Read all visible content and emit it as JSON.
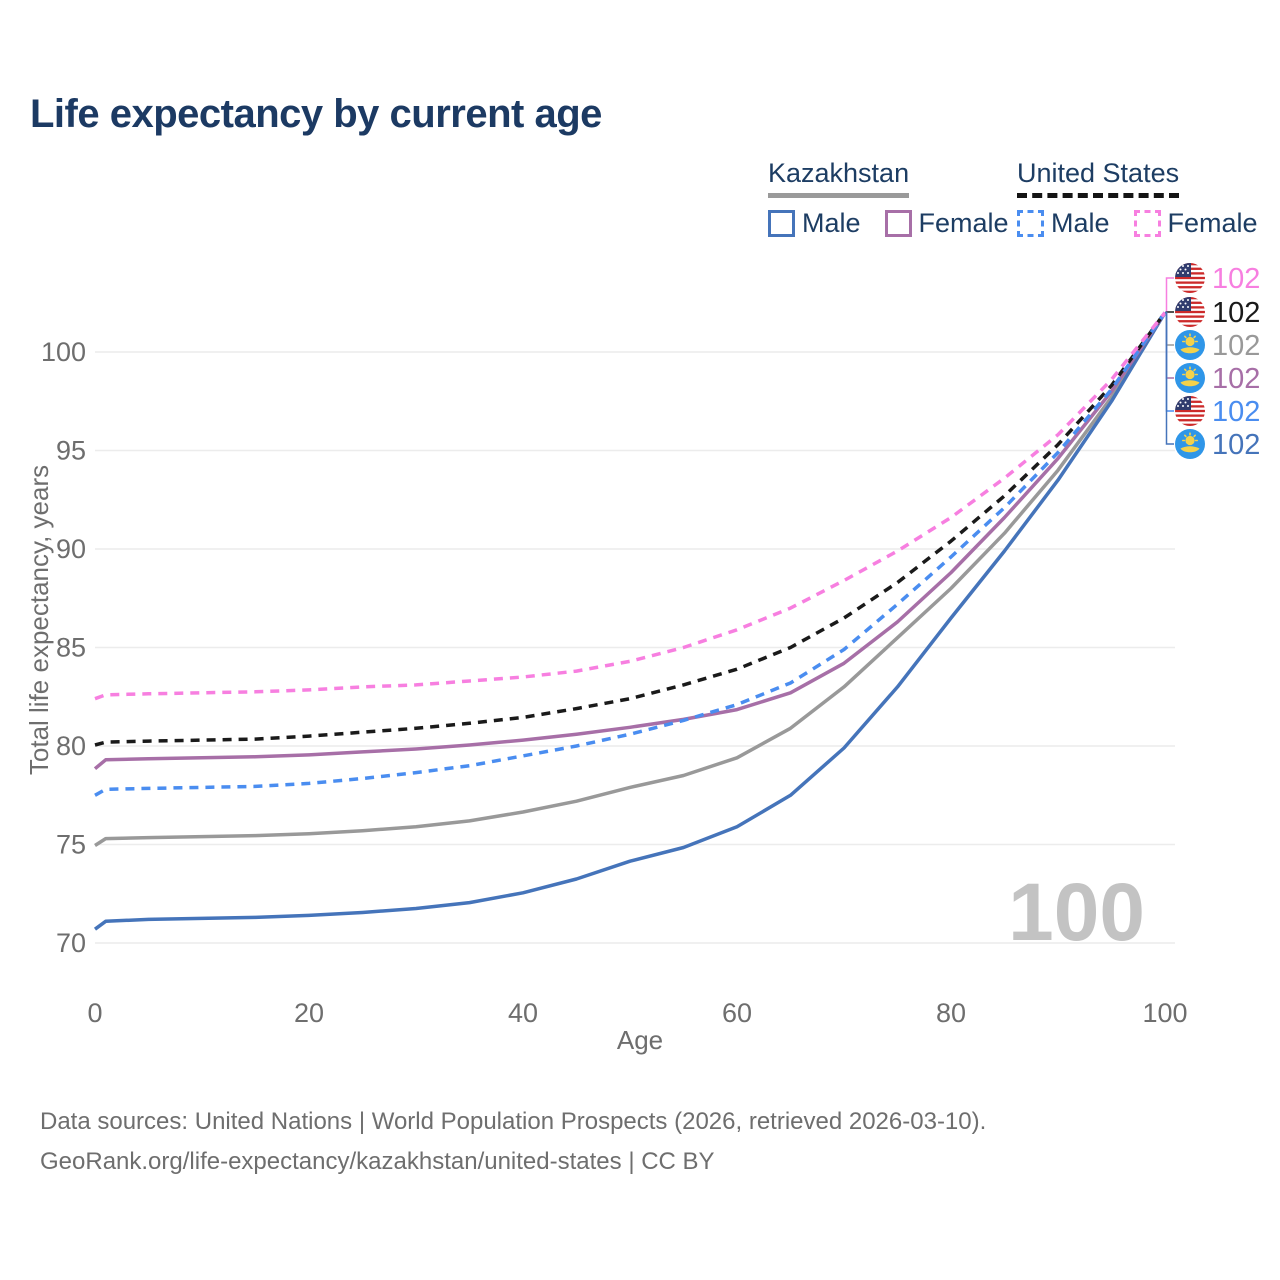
{
  "title": "Life expectancy by current age",
  "legend": {
    "groups": [
      {
        "label": "Kazakhstan",
        "line_style": "solid",
        "line_color": "#9a9a9a",
        "items": [
          {
            "label": "Male",
            "color": "#4574BA",
            "dash": false
          },
          {
            "label": "Female",
            "color": "#A76FA7",
            "dash": false
          }
        ]
      },
      {
        "label": "United States",
        "line_style": "dashed",
        "line_color": "#141414",
        "items": [
          {
            "label": "Male",
            "color": "#4A8DF0",
            "dash": true
          },
          {
            "label": "Female",
            "color": "#F77FE0",
            "dash": true
          }
        ]
      }
    ]
  },
  "chart_data": {
    "type": "line",
    "title": "Life expectancy by current age",
    "xlabel": "Age",
    "ylabel": "Total life expectancy, years",
    "x_ticks": [
      0,
      20,
      40,
      60,
      80,
      100
    ],
    "y_ticks": [
      70,
      75,
      80,
      85,
      90,
      95,
      100
    ],
    "xlim": [
      0,
      100
    ],
    "ylim": [
      70,
      100
    ],
    "grid": true,
    "legend_position": "top-right",
    "watermark": "100",
    "x": [
      0,
      1,
      5,
      10,
      15,
      20,
      25,
      30,
      35,
      40,
      45,
      50,
      55,
      60,
      65,
      70,
      75,
      80,
      85,
      90,
      95,
      100
    ],
    "series": [
      {
        "name": "Kazakhstan Total",
        "country": "kz",
        "color": "#999999",
        "dash": false,
        "values": [
          74.95,
          75.3,
          75.35,
          75.4,
          75.45,
          75.55,
          75.7,
          75.9,
          76.2,
          76.65,
          77.2,
          77.9,
          78.5,
          79.4,
          80.9,
          83.0,
          85.5,
          88.0,
          90.8,
          94.0,
          97.7,
          102
        ],
        "end_label": "102",
        "label_row": 2
      },
      {
        "name": "Kazakhstan Male",
        "country": "kz",
        "color": "#4574BA",
        "dash": false,
        "values": [
          70.7,
          71.1,
          71.2,
          71.25,
          71.3,
          71.4,
          71.55,
          71.75,
          72.05,
          72.55,
          73.25,
          74.15,
          74.85,
          75.9,
          77.5,
          79.9,
          83.0,
          86.5,
          89.9,
          93.5,
          97.5,
          102
        ],
        "end_label": "102",
        "label_row": 5
      },
      {
        "name": "Kazakhstan Female",
        "country": "kz",
        "color": "#A76FA7",
        "dash": false,
        "values": [
          78.85,
          79.3,
          79.35,
          79.4,
          79.45,
          79.55,
          79.7,
          79.85,
          80.05,
          80.3,
          80.6,
          80.95,
          81.35,
          81.85,
          82.7,
          84.2,
          86.3,
          88.8,
          91.6,
          94.6,
          98.0,
          102
        ],
        "end_label": "102",
        "label_row": 3
      },
      {
        "name": "United States Total",
        "country": "us",
        "color": "#1A1A1A",
        "dash": true,
        "values": [
          80.05,
          80.2,
          80.25,
          80.3,
          80.35,
          80.5,
          80.7,
          80.9,
          81.15,
          81.45,
          81.9,
          82.4,
          83.1,
          83.9,
          85.0,
          86.5,
          88.3,
          90.4,
          92.7,
          95.3,
          98.3,
          102
        ],
        "end_label": "102",
        "label_row": 1
      },
      {
        "name": "United States Male",
        "country": "us",
        "color": "#4A8DF0",
        "dash": true,
        "values": [
          77.5,
          77.8,
          77.85,
          77.9,
          77.95,
          78.1,
          78.35,
          78.65,
          79.0,
          79.5,
          80.0,
          80.6,
          81.3,
          82.1,
          83.2,
          84.9,
          87.2,
          89.6,
          92.1,
          94.9,
          98.1,
          102
        ],
        "end_label": "102",
        "label_row": 4
      },
      {
        "name": "United States Female",
        "country": "us",
        "color": "#F77FE0",
        "dash": true,
        "values": [
          82.4,
          82.6,
          82.65,
          82.7,
          82.75,
          82.85,
          83.0,
          83.1,
          83.3,
          83.5,
          83.8,
          84.3,
          85.0,
          85.9,
          87.0,
          88.4,
          89.9,
          91.6,
          93.6,
          95.8,
          98.6,
          102
        ],
        "end_label": "102",
        "label_row": 0
      }
    ]
  },
  "footer": {
    "line1": "Data sources: United Nations | World Population Prospects (2026, retrieved 2026-03-10).",
    "line2": "GeoRank.org/life-expectancy/kazakhstan/united-states | CC BY"
  }
}
